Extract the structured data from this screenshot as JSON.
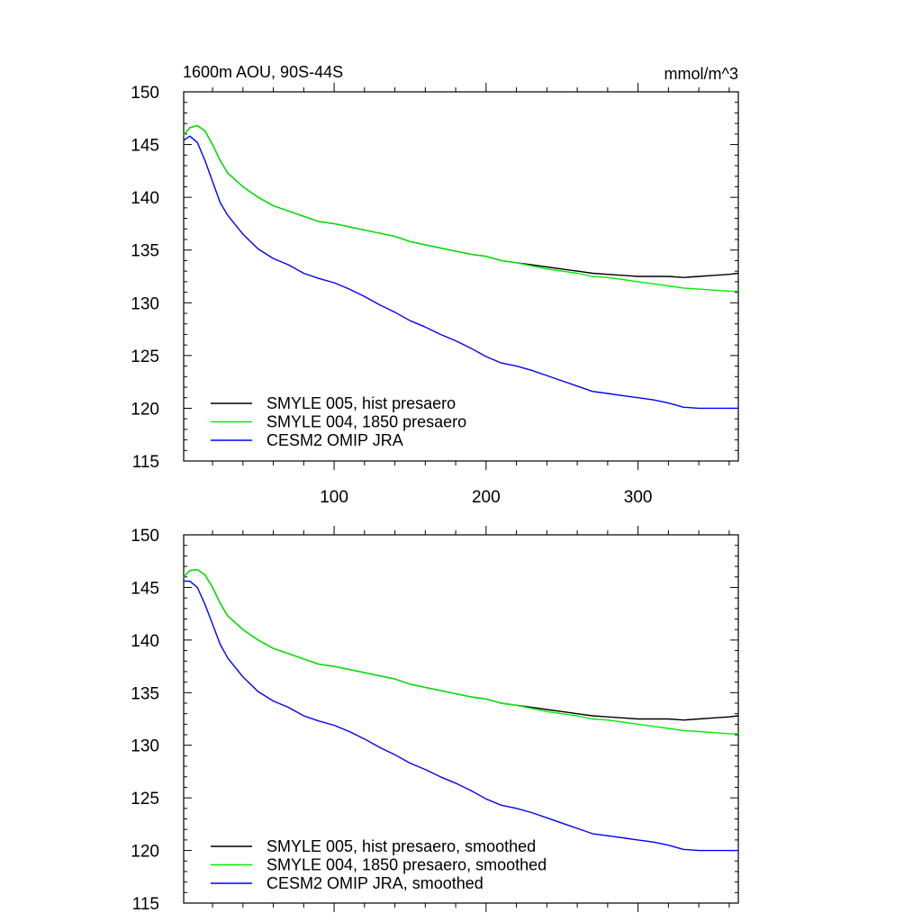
{
  "figure": {
    "title_left": "1600m AOU, 90S-44S",
    "title_right": "mmol/m^3"
  },
  "chart_data": [
    {
      "type": "line",
      "title": "1600m AOU, 90S-44S",
      "units": "mmol/m^3",
      "xlim": [
        1,
        366
      ],
      "ylim": [
        115,
        150
      ],
      "x_ticks": [
        100,
        200,
        300
      ],
      "x_tick_labels": [
        "100",
        "200",
        "300"
      ],
      "y_ticks": [
        115,
        120,
        125,
        130,
        135,
        140,
        145,
        150
      ],
      "y_tick_labels": [
        "115",
        "120",
        "125",
        "130",
        "135",
        "140",
        "145",
        "150"
      ],
      "legend_placement": "bottom-left",
      "series": [
        {
          "name": "SMYLE 005, hist presaero",
          "color": "#000000",
          "x": [
            1,
            5,
            10,
            15,
            20,
            25,
            30,
            40,
            50,
            60,
            70,
            80,
            90,
            100,
            110,
            120,
            130,
            140,
            150,
            160,
            170,
            180,
            190,
            200,
            210,
            220,
            230,
            240,
            250,
            260,
            270,
            280,
            290,
            300,
            310,
            320,
            330,
            340,
            350,
            360,
            366
          ],
          "y": [
            145.9,
            146.6,
            146.8,
            146.3,
            145.0,
            143.5,
            142.3,
            141.0,
            140.0,
            139.2,
            138.7,
            138.2,
            137.7,
            137.5,
            137.2,
            136.9,
            136.6,
            136.3,
            135.8,
            135.5,
            135.2,
            134.9,
            134.6,
            134.4,
            134.0,
            133.8,
            133.6,
            133.4,
            133.2,
            133.0,
            132.8,
            132.7,
            132.6,
            132.5,
            132.5,
            132.5,
            132.4,
            132.5,
            132.6,
            132.7,
            132.8
          ]
        },
        {
          "name": "SMYLE 004, 1850 presaero",
          "color": "#00ee00",
          "x": [
            1,
            5,
            10,
            15,
            20,
            25,
            30,
            40,
            50,
            60,
            70,
            80,
            90,
            100,
            110,
            120,
            130,
            140,
            150,
            160,
            170,
            180,
            190,
            200,
            210,
            220,
            230,
            240,
            250,
            260,
            270,
            280,
            290,
            300,
            310,
            320,
            330,
            340,
            350,
            360,
            366
          ],
          "y": [
            145.9,
            146.6,
            146.8,
            146.3,
            145.0,
            143.5,
            142.3,
            141.0,
            140.0,
            139.2,
            138.7,
            138.2,
            137.7,
            137.5,
            137.2,
            136.9,
            136.6,
            136.3,
            135.8,
            135.5,
            135.2,
            134.9,
            134.6,
            134.4,
            134.0,
            133.8,
            133.5,
            133.2,
            133.0,
            132.8,
            132.5,
            132.4,
            132.2,
            132.0,
            131.8,
            131.6,
            131.4,
            131.3,
            131.2,
            131.1,
            131.1
          ]
        },
        {
          "name": "CESM2 OMIP JRA",
          "color": "#0000ff",
          "x": [
            1,
            5,
            10,
            15,
            20,
            25,
            30,
            40,
            50,
            60,
            70,
            80,
            90,
            100,
            110,
            120,
            130,
            140,
            150,
            160,
            170,
            180,
            190,
            200,
            210,
            220,
            230,
            240,
            250,
            260,
            270,
            280,
            290,
            300,
            310,
            320,
            330,
            340,
            350,
            360,
            366
          ],
          "y": [
            145.4,
            145.8,
            145.2,
            143.5,
            141.5,
            139.5,
            138.3,
            136.5,
            135.1,
            134.2,
            133.6,
            132.8,
            132.3,
            131.9,
            131.3,
            130.6,
            129.8,
            129.1,
            128.3,
            127.7,
            127.0,
            126.4,
            125.7,
            124.9,
            124.3,
            124.0,
            123.6,
            123.1,
            122.6,
            122.1,
            121.6,
            121.4,
            121.2,
            121.0,
            120.8,
            120.5,
            120.1,
            120.0,
            120.0,
            120.0,
            120.0
          ]
        }
      ]
    },
    {
      "type": "line",
      "title": "",
      "xlim": [
        1,
        366
      ],
      "ylim": [
        115,
        150
      ],
      "x_ticks": [
        100,
        200,
        300
      ],
      "x_tick_labels": [],
      "y_ticks": [
        115,
        120,
        125,
        130,
        135,
        140,
        145,
        150
      ],
      "y_tick_labels": [
        "115",
        "120",
        "125",
        "130",
        "135",
        "140",
        "145",
        "150"
      ],
      "legend_placement": "bottom-left",
      "series": [
        {
          "name": "SMYLE 005, hist presaero, smoothed",
          "color": "#000000",
          "x": [
            1,
            5,
            10,
            15,
            20,
            25,
            30,
            40,
            50,
            60,
            70,
            80,
            90,
            100,
            110,
            120,
            130,
            140,
            150,
            160,
            170,
            180,
            190,
            200,
            210,
            220,
            230,
            240,
            250,
            260,
            270,
            280,
            290,
            300,
            310,
            320,
            330,
            340,
            350,
            360,
            366
          ],
          "y": [
            146.0,
            146.6,
            146.7,
            146.2,
            145.0,
            143.5,
            142.3,
            141.0,
            140.0,
            139.2,
            138.7,
            138.2,
            137.7,
            137.5,
            137.2,
            136.9,
            136.6,
            136.3,
            135.8,
            135.5,
            135.2,
            134.9,
            134.6,
            134.4,
            134.0,
            133.8,
            133.6,
            133.4,
            133.2,
            133.0,
            132.8,
            132.7,
            132.6,
            132.5,
            132.5,
            132.5,
            132.4,
            132.5,
            132.6,
            132.7,
            132.8
          ]
        },
        {
          "name": "SMYLE 004, 1850 presaero, smoothed",
          "color": "#00ee00",
          "x": [
            1,
            5,
            10,
            15,
            20,
            25,
            30,
            40,
            50,
            60,
            70,
            80,
            90,
            100,
            110,
            120,
            130,
            140,
            150,
            160,
            170,
            180,
            190,
            200,
            210,
            220,
            230,
            240,
            250,
            260,
            270,
            280,
            290,
            300,
            310,
            320,
            330,
            340,
            350,
            360,
            366
          ],
          "y": [
            146.0,
            146.6,
            146.7,
            146.2,
            145.0,
            143.5,
            142.3,
            141.0,
            140.0,
            139.2,
            138.7,
            138.2,
            137.7,
            137.5,
            137.2,
            136.9,
            136.6,
            136.3,
            135.8,
            135.5,
            135.2,
            134.9,
            134.6,
            134.4,
            134.0,
            133.8,
            133.5,
            133.2,
            133.0,
            132.8,
            132.5,
            132.4,
            132.2,
            132.0,
            131.8,
            131.6,
            131.4,
            131.3,
            131.2,
            131.1,
            131.1
          ]
        },
        {
          "name": "CESM2 OMIP JRA, smoothed",
          "color": "#0000ff",
          "x": [
            1,
            5,
            10,
            15,
            20,
            25,
            30,
            40,
            50,
            60,
            70,
            80,
            90,
            100,
            110,
            120,
            130,
            140,
            150,
            160,
            170,
            180,
            190,
            200,
            210,
            220,
            230,
            240,
            250,
            260,
            270,
            280,
            290,
            300,
            310,
            320,
            330,
            340,
            350,
            360,
            366
          ],
          "y": [
            145.6,
            145.6,
            145.0,
            143.4,
            141.5,
            139.6,
            138.3,
            136.5,
            135.1,
            134.2,
            133.6,
            132.8,
            132.3,
            131.9,
            131.3,
            130.6,
            129.8,
            129.1,
            128.3,
            127.7,
            127.0,
            126.4,
            125.7,
            124.9,
            124.3,
            124.0,
            123.6,
            123.1,
            122.6,
            122.1,
            121.6,
            121.4,
            121.2,
            121.0,
            120.8,
            120.5,
            120.1,
            120.0,
            120.0,
            120.0,
            120.0
          ]
        }
      ]
    }
  ]
}
